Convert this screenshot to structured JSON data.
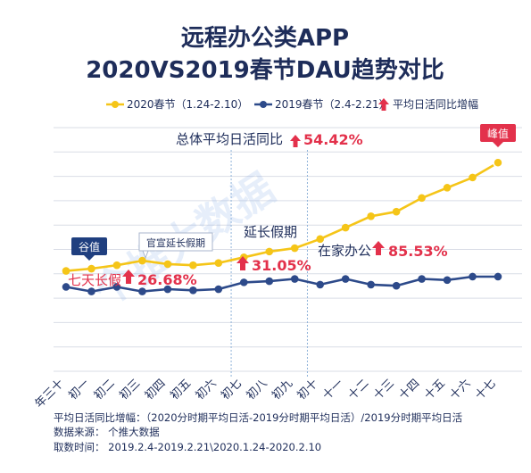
{
  "chart_data": {
    "type": "line",
    "title": [
      "远程办公类APP",
      "2020VS2019春节DAU趋势对比"
    ],
    "legend": [
      {
        "label": "2020春节（1.24-2.10）",
        "color": "#f5c518",
        "marker": "circle"
      },
      {
        "label": "2019春节（2.4-2.21）",
        "color": "#2d4a8a",
        "marker": "circle"
      },
      {
        "label": "平均日活同比增幅",
        "color": "#e3314b",
        "marker": "up-arrow"
      }
    ],
    "categories": [
      "年三十",
      "初一",
      "初二",
      "初三",
      "初四",
      "初五",
      "初六",
      "初七",
      "初八",
      "初九",
      "初十",
      "十一",
      "十二",
      "十三",
      "十四",
      "十五",
      "十六",
      "十七"
    ],
    "series": [
      {
        "name": "2020春节（1.24-2.10）",
        "color": "#f5c518",
        "values": [
          44,
          45,
          46.5,
          48.5,
          47,
          46.5,
          47.5,
          50,
          52.5,
          54,
          58,
          63,
          68,
          70,
          76,
          80.5,
          85,
          91.5
        ]
      },
      {
        "name": "2019春节（2.4-2.21）",
        "color": "#2d4a8a",
        "values": [
          37,
          35,
          37,
          35,
          36,
          35.5,
          36,
          39,
          39.5,
          40.5,
          38,
          40.5,
          38,
          37.5,
          40.5,
          40,
          41.5,
          41.5
        ]
      }
    ],
    "ylim": [
      0,
      110
    ],
    "grid": "horizontal",
    "legend_position": "top",
    "dividers": [
      {
        "after": "初六"
      },
      {
        "after": "初九"
      }
    ],
    "annotations": {
      "overall": {
        "label": "总体平均日活同比",
        "value": "54.42%"
      },
      "holiday": {
        "label": "七天长假",
        "value": "26.68%"
      },
      "extended_title": "延长假期",
      "extended": {
        "value": "31.05%"
      },
      "wfh": {
        "label": "在家办公",
        "value": "85.53%"
      },
      "announce": "官宣延长假期",
      "trough": "谷值",
      "peak": "峰值"
    }
  },
  "footer": {
    "formula": "平均日活同比增幅：（2020分时期平均日活-2019分时期平均日活）/2019分时期平均日活",
    "source": "数据来源：  个推大数据",
    "period": "取数时间：  2019.2.4-2019.2.21\\2020.1.24-2020.2.10"
  },
  "watermark": "个推大数据",
  "colors": {
    "title": "#1e2d5a",
    "accent": "#e3314b",
    "badge": "#1f3f7f",
    "grid": "#d9dde6",
    "divider": "#8fb3d9"
  }
}
